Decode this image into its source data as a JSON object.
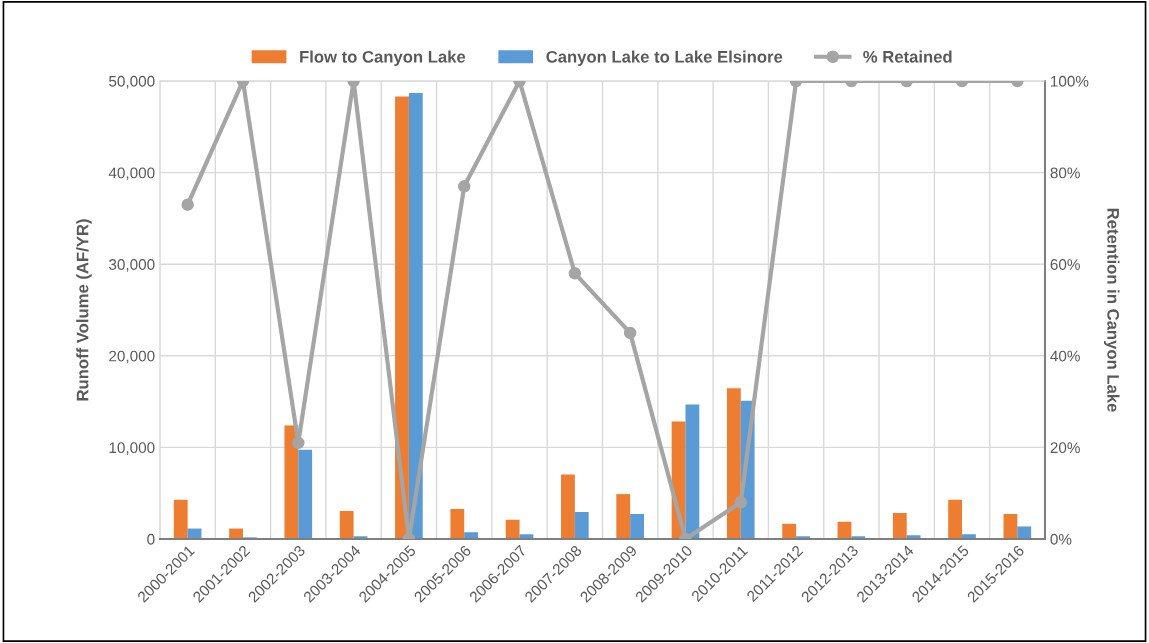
{
  "chart_data": {
    "type": "bar",
    "categories": [
      "2000-2001",
      "2001-2002",
      "2002-2003",
      "2003-2004",
      "2004-2005",
      "2005-2006",
      "2006-2007",
      "2007-2008",
      "2008-2009",
      "2009-2010",
      "2010-2011",
      "2011-2012",
      "2012-2013",
      "2013-2014",
      "2014-2015",
      "2015-2016"
    ],
    "series": [
      {
        "name": "Flow to Canyon Lake",
        "color": "#ed7d31",
        "values": [
          4280,
          1140,
          12400,
          3060,
          48300,
          3280,
          2100,
          7050,
          4900,
          12840,
          16460,
          1660,
          1880,
          2840,
          4280,
          2730
        ]
      },
      {
        "name": "Canyon Lake to Lake Elsinore",
        "color": "#5b9bd5",
        "values": [
          1140,
          180,
          9740,
          300,
          48700,
          740,
          520,
          2950,
          2730,
          14690,
          15090,
          300,
          300,
          410,
          520,
          1370
        ]
      },
      {
        "name": "% Retained",
        "type": "line",
        "axis": "y2",
        "color": "#a5a5a5",
        "marker": "circle",
        "line_style": "solid",
        "values": [
          73,
          100,
          21,
          100,
          0,
          77,
          100,
          58,
          45,
          0,
          8,
          100,
          100,
          100,
          100,
          100
        ]
      }
    ],
    "ylabel": "Runoff Volume (AF/YR)",
    "y2label": "Retention in Canyon Lake",
    "ylim": [
      0,
      50000
    ],
    "yticks": [
      0,
      {
        "value": 10000,
        "label": "10,000"
      },
      {
        "value": 20000,
        "label": "20,000"
      },
      {
        "value": 30000,
        "label": "30,000"
      },
      {
        "value": 40000,
        "label": "40,000"
      },
      {
        "value": 50000,
        "label": "50,000"
      }
    ],
    "y2lim": [
      0,
      100
    ],
    "y2ticks": [
      {
        "value": 0,
        "label": "0%"
      },
      {
        "value": 20,
        "label": "20%"
      },
      {
        "value": 40,
        "label": "40%"
      },
      {
        "value": 60,
        "label": "60%"
      },
      {
        "value": 80,
        "label": "80%"
      },
      {
        "value": 100,
        "label": "100%"
      }
    ],
    "grid": true,
    "legend": "top"
  }
}
